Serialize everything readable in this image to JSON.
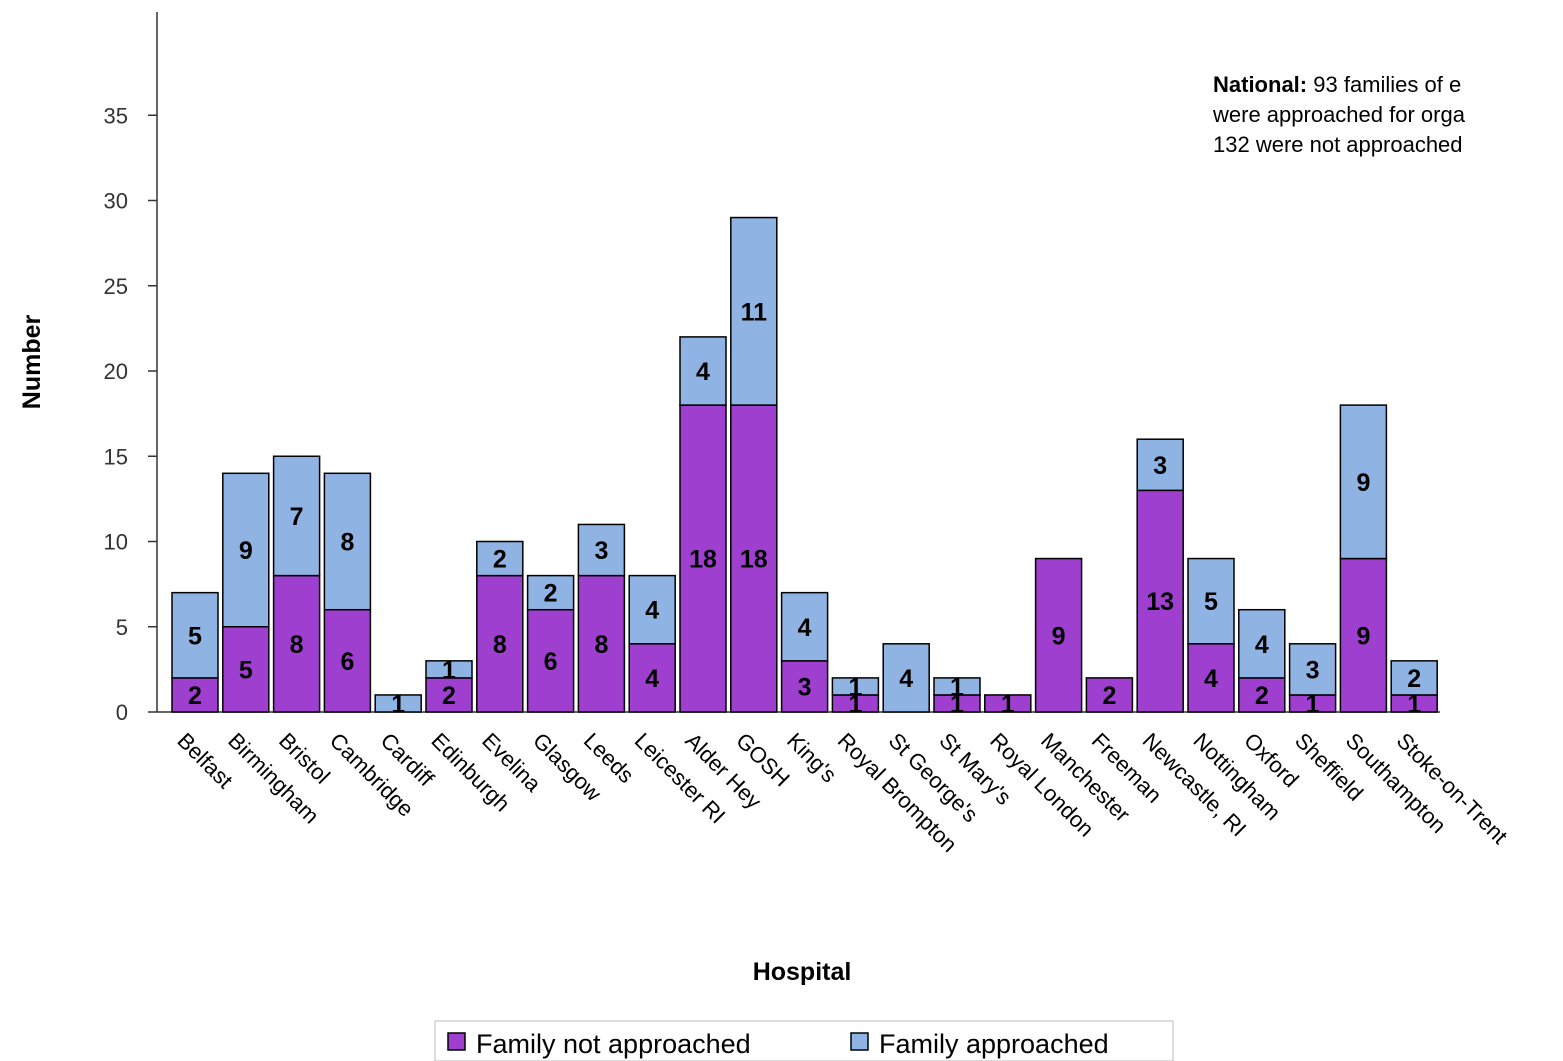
{
  "chart_data": {
    "type": "bar",
    "stacked": true,
    "xlabel": "Hospital",
    "ylabel": "Number",
    "ylim": [
      0,
      36
    ],
    "yticks": [
      0,
      5,
      10,
      15,
      20,
      25,
      30,
      35
    ],
    "categories": [
      "Belfast",
      "Birmingham",
      "Bristol",
      "Cambridge",
      "Cardiff",
      "Edinburgh",
      "Evelina",
      "Glasgow",
      "Leeds",
      "Leicester RI",
      "Alder Hey",
      "GOSH",
      "King's",
      "Royal Brompton",
      "St George's",
      "St Mary's",
      "Royal London",
      "Manchester",
      "Freeman",
      "Newcastle, RI",
      "Nottingham",
      "Oxford",
      "Sheffield",
      "Southampton",
      "Stoke-on-Trent"
    ],
    "series": [
      {
        "name": "Family not approached",
        "color": "#9f3fcf",
        "values": [
          2,
          5,
          8,
          6,
          0,
          2,
          8,
          6,
          8,
          4,
          18,
          18,
          3,
          1,
          0,
          1,
          1,
          9,
          2,
          13,
          4,
          2,
          1,
          9,
          1
        ]
      },
      {
        "name": "Family approached",
        "color": "#8fb4e3",
        "values": [
          5,
          9,
          7,
          8,
          1,
          1,
          2,
          2,
          3,
          4,
          4,
          11,
          4,
          1,
          4,
          1,
          0,
          0,
          0,
          3,
          5,
          4,
          3,
          9,
          2
        ]
      }
    ],
    "legend_position": "bottom-center",
    "grid": false,
    "annotation": {
      "bold": "National:",
      "lines": [
        "93 families of e",
        "were approached for orga",
        "132 were not approached"
      ]
    }
  }
}
